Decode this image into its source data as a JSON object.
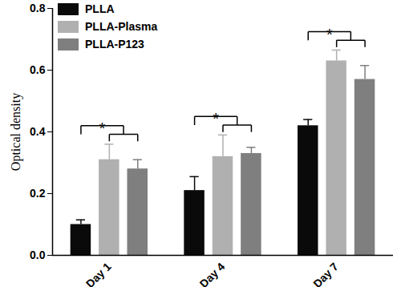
{
  "chart_data": {
    "type": "bar",
    "y_label": "Optical density",
    "categories": [
      "Day 1",
      "Day 4",
      "Day 7"
    ],
    "series": [
      {
        "name": "PLLA",
        "color": "#0a0a0a",
        "values": [
          0.1,
          0.21,
          0.42
        ],
        "errors": [
          0.015,
          0.045,
          0.02
        ]
      },
      {
        "name": "PLLA-Plasma",
        "color": "#b0b0b0",
        "values": [
          0.31,
          0.32,
          0.63
        ],
        "errors": [
          0.05,
          0.07,
          0.035
        ]
      },
      {
        "name": "PLLA-P123",
        "color": "#7f7f7f",
        "values": [
          0.28,
          0.33,
          0.57
        ],
        "errors": [
          0.03,
          0.02,
          0.045
        ]
      }
    ],
    "ylim": [
      0,
      0.8
    ],
    "yticks": [
      {
        "value": 0,
        "label": "0.0"
      },
      0.2,
      0.4,
      0.6,
      0.8
    ],
    "legend": "top-left",
    "annotations": [
      {
        "category": "Day 1",
        "text": "*"
      },
      {
        "category": "Day 4",
        "text": "*"
      },
      {
        "category": "Day 7",
        "text": "*"
      }
    ]
  }
}
